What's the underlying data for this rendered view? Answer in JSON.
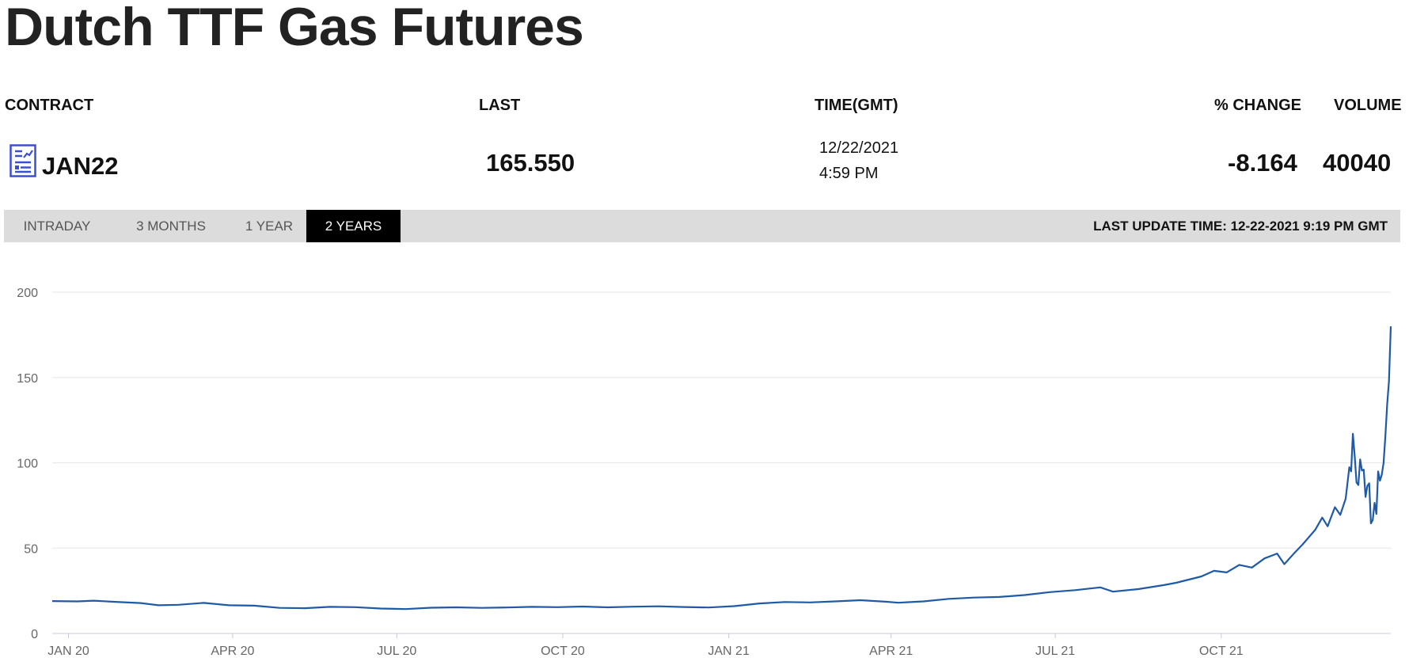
{
  "page": {
    "title": "Dutch TTF Gas Futures"
  },
  "quote": {
    "headers": {
      "contract": "CONTRACT",
      "last": "LAST",
      "time": "TIME(GMT)",
      "change": "% CHANGE",
      "volume": "VOLUME"
    },
    "contract": "JAN22",
    "last": "165.550",
    "date": "12/22/2021",
    "time": "4:59 PM",
    "change": "-8.164",
    "volume": "40040",
    "icon": "chart-document-icon"
  },
  "tabs": [
    {
      "label": "INTRADAY",
      "active": false
    },
    {
      "label": "3 MONTHS",
      "active": false
    },
    {
      "label": "1 YEAR",
      "active": false
    },
    {
      "label": "2 YEARS",
      "active": true
    }
  ],
  "last_update": "LAST UPDATE TIME: 12-22-2021 9:19 PM GMT",
  "colors": {
    "line": "#1f5aa6",
    "grid": "#e6e6e6",
    "active_tab": "#000000",
    "tabbar": "#dcdcdc"
  },
  "chart_data": {
    "type": "line",
    "title": "",
    "xlabel": "",
    "ylabel": "",
    "ylim": [
      0,
      200
    ],
    "yticks": [
      0,
      50,
      100,
      150,
      200
    ],
    "xticks": [
      {
        "date": "2020-01-01",
        "label": "JAN 20"
      },
      {
        "date": "2020-04-01",
        "label": "APR 20"
      },
      {
        "date": "2020-07-01",
        "label": "JUL 20"
      },
      {
        "date": "2020-10-01",
        "label": "OCT 20"
      },
      {
        "date": "2021-01-01",
        "label": "JAN 21"
      },
      {
        "date": "2021-04-01",
        "label": "APR 21"
      },
      {
        "date": "2021-07-01",
        "label": "JUL 21"
      },
      {
        "date": "2021-10-01",
        "label": "OCT 21"
      }
    ],
    "xlim": [
      "2019-12-23",
      "2022-01-03"
    ],
    "grid": true,
    "legend": "none",
    "series": [
      {
        "points": [
          [
            "2019-12-23",
            19.0
          ],
          [
            "2020-01-06",
            18.8
          ],
          [
            "2020-01-15",
            19.2
          ],
          [
            "2020-01-27",
            18.5
          ],
          [
            "2020-02-10",
            17.8
          ],
          [
            "2020-02-20",
            16.5
          ],
          [
            "2020-03-02",
            16.8
          ],
          [
            "2020-03-16",
            17.9
          ],
          [
            "2020-03-30",
            16.5
          ],
          [
            "2020-04-13",
            16.3
          ],
          [
            "2020-04-27",
            15.0
          ],
          [
            "2020-05-11",
            14.8
          ],
          [
            "2020-05-25",
            15.6
          ],
          [
            "2020-06-08",
            15.4
          ],
          [
            "2020-06-22",
            14.6
          ],
          [
            "2020-07-06",
            14.3
          ],
          [
            "2020-07-20",
            15.1
          ],
          [
            "2020-08-03",
            15.3
          ],
          [
            "2020-08-17",
            15.0
          ],
          [
            "2020-08-31",
            15.2
          ],
          [
            "2020-09-14",
            15.6
          ],
          [
            "2020-09-28",
            15.4
          ],
          [
            "2020-10-12",
            15.8
          ],
          [
            "2020-10-26",
            15.3
          ],
          [
            "2020-11-09",
            15.7
          ],
          [
            "2020-11-23",
            15.9
          ],
          [
            "2020-12-07",
            15.5
          ],
          [
            "2020-12-21",
            15.2
          ],
          [
            "2021-01-04",
            16.0
          ],
          [
            "2021-01-18",
            17.6
          ],
          [
            "2021-02-01",
            18.4
          ],
          [
            "2021-02-15",
            18.2
          ],
          [
            "2021-03-01",
            18.8
          ],
          [
            "2021-03-15",
            19.5
          ],
          [
            "2021-03-29",
            18.6
          ],
          [
            "2021-04-05",
            18.0
          ],
          [
            "2021-04-19",
            18.8
          ],
          [
            "2021-05-03",
            20.3
          ],
          [
            "2021-05-17",
            21.0
          ],
          [
            "2021-05-31",
            21.4
          ],
          [
            "2021-06-14",
            22.5
          ],
          [
            "2021-06-28",
            24.2
          ],
          [
            "2021-07-12",
            25.4
          ],
          [
            "2021-07-26",
            27.0
          ],
          [
            "2021-08-02",
            24.5
          ],
          [
            "2021-08-16",
            26.0
          ],
          [
            "2021-08-30",
            28.3
          ],
          [
            "2021-09-06",
            29.7
          ],
          [
            "2021-09-20",
            33.4
          ],
          [
            "2021-09-27",
            36.7
          ],
          [
            "2021-10-04",
            35.8
          ],
          [
            "2021-10-11",
            40.2
          ],
          [
            "2021-10-18",
            38.6
          ],
          [
            "2021-10-25",
            44.0
          ],
          [
            "2021-11-01",
            46.8
          ],
          [
            "2021-11-05",
            40.6
          ],
          [
            "2021-11-10",
            46.5
          ],
          [
            "2021-11-15",
            52.0
          ],
          [
            "2021-11-22",
            60.6
          ],
          [
            "2021-11-26",
            67.9
          ],
          [
            "2021-11-29",
            62.8
          ],
          [
            "2021-12-03",
            74.0
          ],
          [
            "2021-12-06",
            69.5
          ],
          [
            "2021-12-09",
            79.0
          ],
          [
            "2021-12-11",
            97.4
          ],
          [
            "2021-12-12",
            95.0
          ],
          [
            "2021-12-13",
            117.0
          ],
          [
            "2021-12-14",
            104.0
          ],
          [
            "2021-12-15",
            88.5
          ],
          [
            "2021-12-16",
            87.0
          ],
          [
            "2021-12-17",
            102.0
          ],
          [
            "2021-12-18",
            95.5
          ],
          [
            "2021-12-19",
            96.0
          ],
          [
            "2021-12-20",
            80.0
          ],
          [
            "2021-12-21",
            86.5
          ],
          [
            "2021-12-22",
            88.0
          ],
          [
            "2021-12-23",
            64.5
          ],
          [
            "2021-12-24",
            66.5
          ],
          [
            "2021-12-25",
            76.5
          ],
          [
            "2021-12-26",
            70.0
          ],
          [
            "2021-12-27",
            95.0
          ],
          [
            "2021-12-28",
            89.5
          ],
          [
            "2021-12-29",
            93.0
          ],
          [
            "2021-12-30",
            100.0
          ],
          [
            "2021-12-31",
            116.0
          ],
          [
            "2022-01-01",
            134.0
          ],
          [
            "2022-01-02",
            148.0
          ],
          [
            "2022-01-03",
            180.0
          ]
        ]
      }
    ]
  }
}
